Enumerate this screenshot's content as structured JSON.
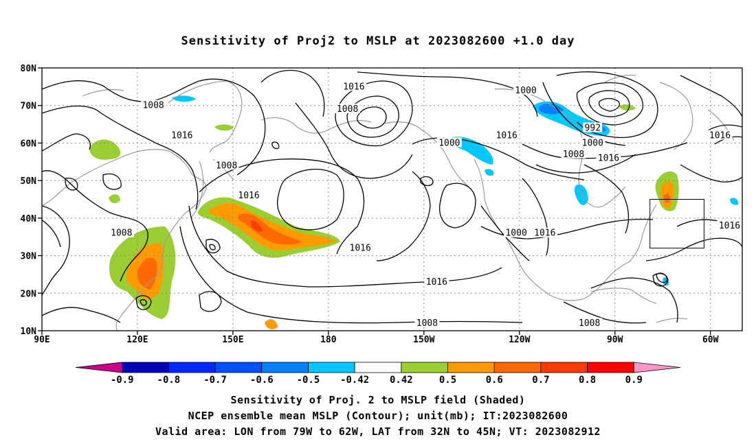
{
  "title": "Sensitivity of Proj2 to MSLP at 2023082600 +1.0 day",
  "map": {
    "lat_ticks": [
      "80N",
      "70N",
      "60N",
      "50N",
      "40N",
      "30N",
      "20N",
      "10N"
    ],
    "lon_ticks": [
      "90E",
      "120E",
      "150E",
      "180",
      "150W",
      "120W",
      "90W",
      "60W"
    ],
    "contour_labels": [
      {
        "text": "1016",
        "lon": -172,
        "lat": 75
      },
      {
        "text": "1008",
        "lon": 125,
        "lat": 70
      },
      {
        "text": "1008",
        "lon": -174,
        "lat": 69
      },
      {
        "text": "1000",
        "lon": -118,
        "lat": 74
      },
      {
        "text": "1016",
        "lon": 134,
        "lat": 62
      },
      {
        "text": "1000",
        "lon": -142,
        "lat": 60
      },
      {
        "text": "1016",
        "lon": -124,
        "lat": 62
      },
      {
        "text": "1008",
        "lon": 148,
        "lat": 54
      },
      {
        "text": "1008",
        "lon": -103,
        "lat": 57
      },
      {
        "text": "992",
        "lon": -97,
        "lat": 64
      },
      {
        "text": "1000",
        "lon": -97,
        "lat": 60
      },
      {
        "text": "1016",
        "lon": -92,
        "lat": 56
      },
      {
        "text": "1016",
        "lon": -57,
        "lat": 62
      },
      {
        "text": "1016",
        "lon": 155,
        "lat": 46
      },
      {
        "text": "1008",
        "lon": 115,
        "lat": 36
      },
      {
        "text": "1016",
        "lon": -170,
        "lat": 32
      },
      {
        "text": "1000",
        "lon": -121,
        "lat": 36
      },
      {
        "text": "1016",
        "lon": -112,
        "lat": 36
      },
      {
        "text": "1016",
        "lon": -54,
        "lat": 38
      },
      {
        "text": "1016",
        "lon": -146,
        "lat": 23
      },
      {
        "text": "1008",
        "lon": -149,
        "lat": 12
      },
      {
        "text": "1008",
        "lon": -98,
        "lat": 12
      }
    ],
    "valid_box": {
      "lon_min": -79,
      "lon_max": -62,
      "lat_min": 32,
      "lat_max": 45
    },
    "colors": {
      "contour": "#000000",
      "coast": "#9a9a9a",
      "grid": "#8a8a8a"
    }
  },
  "colorbar": {
    "labels": [
      "-0.9",
      "-0.8",
      "-0.7",
      "-0.6",
      "-0.5",
      "-0.42",
      "0.42",
      "0.5",
      "0.6",
      "0.7",
      "0.8",
      "0.9"
    ],
    "colors": [
      "#0000b8",
      "#0028ff",
      "#0050ff",
      "#0082ff",
      "#00c8ff",
      "#ffffff",
      "#9bce32",
      "#ff9b00",
      "#ff6a00",
      "#ff3c00",
      "#ff0000"
    ],
    "low_color": "#c8008c",
    "high_color": "#ff96c8"
  },
  "captions": {
    "line1": "Sensitivity of Proj. 2 to MSLP field (Shaded)",
    "line2": "NCEP ensemble mean MSLP (Contour); unit(mb); IT:2023082600",
    "line3": "Valid area: LON from 79W to 62W, LAT from 32N to 45N; VT: 2023082912"
  }
}
